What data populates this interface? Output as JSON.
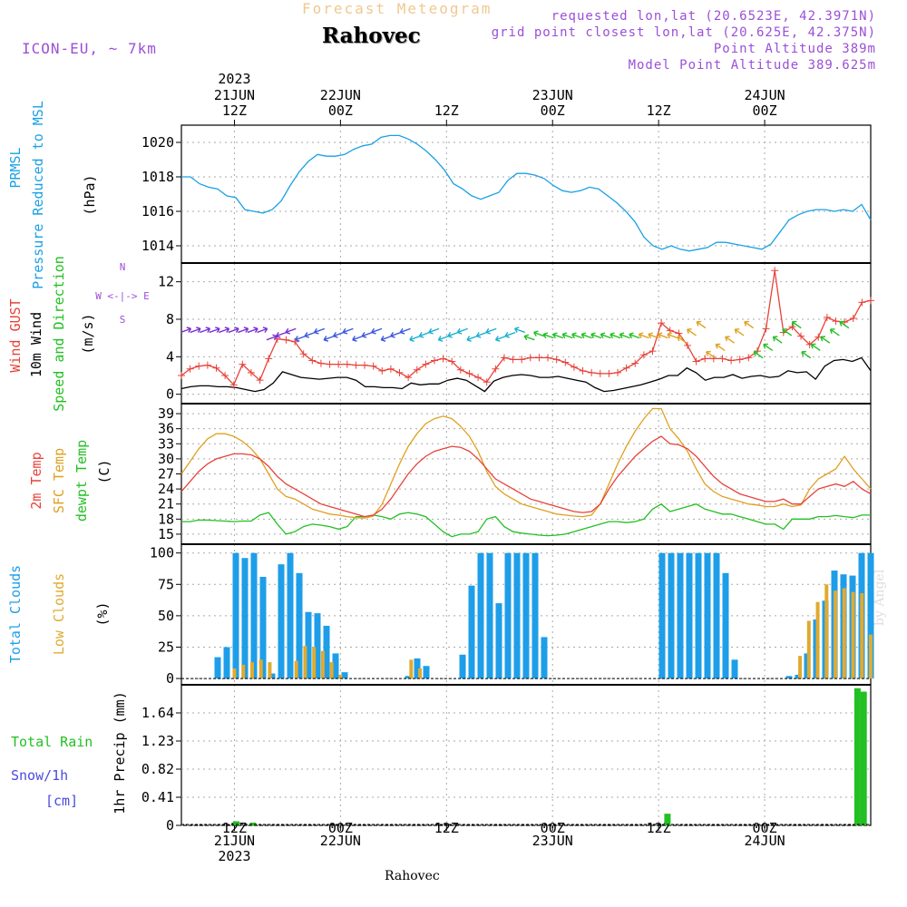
{
  "header": {
    "product_title": "Forecast Meteogram",
    "location_name": "Rahovec",
    "model_label": "ICON-EU, ~ 7km",
    "requested_coords": "requested lon,lat (20.6523E, 42.3971N)",
    "grid_coords": "grid point closest lon,lat (20.625E, 42.375N)",
    "point_altitude": "Point Altitude 389m",
    "model_altitude": "Model Point Altitude 389.625m"
  },
  "footer": {
    "location_name": "Rahovec",
    "credit": "by Angel"
  },
  "colors": {
    "pressure": "#1aa0e6",
    "gust": "#e8423a",
    "wind": "#000000",
    "temp": "#e8423a",
    "sfc_temp": "#e0a020",
    "dewpt": "#22c022",
    "total_clouds": "#1e9ee8",
    "low_clouds": "#e0aa30",
    "rain": "#22c022",
    "snow": "#4a4ae0",
    "purple": "#9b4fd6"
  },
  "chart_data": {
    "type": "meteogram",
    "time_axis": {
      "start_hour": 0,
      "end_hour": 78,
      "major_ticks": [
        {
          "hour": 6,
          "top": "12Z",
          "day": "21JUN",
          "year": "2023"
        },
        {
          "hour": 18,
          "top": "00Z",
          "day": "22JUN",
          "year": ""
        },
        {
          "hour": 30,
          "top": "12Z",
          "day": "",
          "year": ""
        },
        {
          "hour": 42,
          "top": "00Z",
          "day": "23JUN",
          "year": ""
        },
        {
          "hour": 54,
          "top": "12Z",
          "day": "",
          "year": ""
        },
        {
          "hour": 66,
          "top": "00Z",
          "day": "24JUN",
          "year": ""
        }
      ]
    },
    "panels": [
      {
        "id": "pressure",
        "labels": [
          "PRMSL",
          "Pressure Reduced to MSL"
        ],
        "unit": "(hPa)",
        "ylim": [
          1013,
          1021
        ],
        "ticks": [
          1014,
          1016,
          1018,
          1020
        ],
        "series": [
          {
            "name": "PRMSL",
            "values": [
              1018.0,
              1018.0,
              1017.6,
              1017.4,
              1017.3,
              1016.9,
              1016.8,
              1016.1,
              1016.0,
              1015.9,
              1016.1,
              1016.6,
              1017.5,
              1018.3,
              1018.9,
              1019.3,
              1019.2,
              1019.2,
              1019.3,
              1019.6,
              1019.8,
              1019.9,
              1020.3,
              1020.4,
              1020.4,
              1020.2,
              1019.9,
              1019.5,
              1019.0,
              1018.4,
              1017.6,
              1017.3,
              1016.9,
              1016.7,
              1016.9,
              1017.1,
              1017.8,
              1018.2,
              1018.2,
              1018.1,
              1017.9,
              1017.5,
              1017.2,
              1017.1,
              1017.2,
              1017.4,
              1017.3,
              1016.9,
              1016.5,
              1016.0,
              1015.4,
              1014.5,
              1014.0,
              1013.8,
              1014.0,
              1013.8,
              1013.7,
              1013.8,
              1013.9,
              1014.2,
              1014.2,
              1014.1,
              1014.0,
              1013.9,
              1013.8,
              1014.1,
              1014.8,
              1015.5,
              1015.8,
              1016.0,
              1016.1,
              1016.1,
              1016.0,
              1016.1,
              1016.0,
              1016.4,
              1015.5
            ]
          }
        ]
      },
      {
        "id": "wind",
        "labels": [
          "Wind GUST",
          "10m Wind",
          "Speed and Direction"
        ],
        "unit": "(m/s)",
        "compass": [
          "N",
          "W <-|-> E",
          "S"
        ],
        "ylim": [
          -1,
          14
        ],
        "ticks": [
          0,
          4,
          8,
          12
        ],
        "series": [
          {
            "name": "Wind GUST",
            "values": [
              2.0,
              2.7,
              3.0,
              3.1,
              2.8,
              2.0,
              1.0,
              3.2,
              2.3,
              1.5,
              3.8,
              5.9,
              5.8,
              5.6,
              4.3,
              3.6,
              3.3,
              3.2,
              3.2,
              3.2,
              3.1,
              3.1,
              3.0,
              2.5,
              2.7,
              2.3,
              1.8,
              2.6,
              3.2,
              3.6,
              3.8,
              3.5,
              2.6,
              2.2,
              1.8,
              1.3,
              2.7,
              3.9,
              3.7,
              3.7,
              3.9,
              3.9,
              3.9,
              3.7,
              3.4,
              2.9,
              2.5,
              2.3,
              2.2,
              2.2,
              2.3,
              2.8,
              3.3,
              4.2,
              4.6,
              7.6,
              6.8,
              6.5,
              5.2,
              3.5,
              3.8,
              3.8,
              3.8,
              3.6,
              3.7,
              3.9,
              4.6,
              7.0,
              13.2,
              6.6,
              7.2,
              6.2,
              5.3,
              6.1,
              8.2,
              7.8,
              7.7,
              8.1,
              9.8,
              10.0
            ]
          },
          {
            "name": "10m Wind",
            "values": [
              0.6,
              0.8,
              0.9,
              0.9,
              0.8,
              0.8,
              0.7,
              0.5,
              0.3,
              0.5,
              1.2,
              2.4,
              2.1,
              1.8,
              1.7,
              1.6,
              1.7,
              1.8,
              1.8,
              1.5,
              0.8,
              0.8,
              0.7,
              0.7,
              0.6,
              1.2,
              1.0,
              1.1,
              1.1,
              1.5,
              1.7,
              1.5,
              0.9,
              0.3,
              1.4,
              1.8,
              2.0,
              2.1,
              2.0,
              1.8,
              1.8,
              1.9,
              1.7,
              1.5,
              1.3,
              0.7,
              0.3,
              0.4,
              0.6,
              0.8,
              1.0,
              1.3,
              1.6,
              2.0,
              2.0,
              2.8,
              2.3,
              1.5,
              1.8,
              1.8,
              2.1,
              1.7,
              1.9,
              2.0,
              1.8,
              1.9,
              2.5,
              2.3,
              2.4,
              1.6,
              3.0,
              3.6,
              3.7,
              3.5,
              3.9,
              2.5
            ]
          }
        ]
      },
      {
        "id": "temperature",
        "labels": [
          "2m Temp",
          "SFC Temp",
          "dewpt Temp"
        ],
        "unit": "(C)",
        "ylim": [
          13,
          41
        ],
        "ticks": [
          15,
          18,
          21,
          24,
          27,
          30,
          33,
          36,
          39
        ],
        "series": [
          {
            "name": "2m Temp",
            "values": [
              23.5,
              25.5,
              27.5,
              29.0,
              30.0,
              30.5,
              31.0,
              31.0,
              30.8,
              30.0,
              28.5,
              26.5,
              25.0,
              24.0,
              23.0,
              22.0,
              21.0,
              20.5,
              20.0,
              19.5,
              19.0,
              18.5,
              18.8,
              20.0,
              22.0,
              24.5,
              27.0,
              29.0,
              30.5,
              31.5,
              32.0,
              32.5,
              32.3,
              31.5,
              30.0,
              28.0,
              26.0,
              25.0,
              24.0,
              23.0,
              22.0,
              21.5,
              21.0,
              20.5,
              20.0,
              19.5,
              19.3,
              19.5,
              21.0,
              24.0,
              26.5,
              28.5,
              30.5,
              32.0,
              33.5,
              34.5,
              33.0,
              32.8,
              32.0,
              30.5,
              28.5,
              26.5,
              25.0,
              24.0,
              23.0,
              22.5,
              22.0,
              21.5,
              21.5,
              22.0,
              21.0,
              21.0,
              22.5,
              24.0,
              24.5,
              25.0,
              24.5,
              25.5,
              24.0,
              23.0
            ]
          },
          {
            "name": "SFC Temp",
            "values": [
              27.0,
              29.5,
              32.0,
              34.0,
              35.0,
              35.0,
              34.5,
              33.5,
              32.0,
              30.0,
              27.0,
              24.0,
              22.5,
              22.0,
              21.0,
              20.0,
              19.5,
              19.0,
              18.8,
              18.5,
              18.3,
              18.2,
              18.6,
              21.0,
              25.0,
              29.0,
              32.5,
              35.0,
              37.0,
              38.0,
              38.5,
              38.0,
              36.5,
              34.5,
              31.5,
              27.5,
              24.5,
              23.0,
              22.0,
              21.0,
              20.5,
              20.0,
              19.5,
              19.0,
              18.8,
              18.6,
              18.5,
              18.8,
              21.0,
              25.0,
              29.0,
              32.5,
              35.5,
              38.0,
              40.0,
              40.0,
              36.0,
              34.0,
              31.5,
              28.0,
              25.0,
              23.5,
              22.5,
              22.0,
              21.5,
              21.0,
              20.8,
              20.5,
              20.5,
              21.0,
              20.5,
              20.8,
              24.0,
              26.0,
              27.0,
              28.0,
              30.5,
              28.0,
              26.0,
              24.0
            ]
          },
          {
            "name": "dewpt Temp",
            "values": [
              17.5,
              17.5,
              17.8,
              17.8,
              17.7,
              17.6,
              17.5,
              17.6,
              17.6,
              18.8,
              19.3,
              17.0,
              15.0,
              15.5,
              16.5,
              17.0,
              16.8,
              16.5,
              16.0,
              16.5,
              18.5,
              18.5,
              18.8,
              18.5,
              18.0,
              19.0,
              19.3,
              19.0,
              18.5,
              17.0,
              15.5,
              14.5,
              15.0,
              15.0,
              15.5,
              18.0,
              18.5,
              16.5,
              15.5,
              15.2,
              15.0,
              14.8,
              14.7,
              14.8,
              15.0,
              15.5,
              16.0,
              16.5,
              17.0,
              17.5,
              17.5,
              17.3,
              17.5,
              18.0,
              20.0,
              21.0,
              19.5,
              20.0,
              20.5,
              21.0,
              20.0,
              19.5,
              19.0,
              19.0,
              18.5,
              18.0,
              17.5,
              17.0,
              17.0,
              16.0,
              18.0,
              18.0,
              18.0,
              18.5,
              18.5,
              18.7,
              18.5,
              18.3,
              18.8,
              18.8
            ]
          }
        ]
      },
      {
        "id": "clouds",
        "labels": [
          "Total Clouds",
          "Low Clouds"
        ],
        "unit": "(%)",
        "ylim": [
          -5,
          107
        ],
        "ticks": [
          0,
          25,
          50,
          75,
          100
        ],
        "series": [
          {
            "name": "Total Clouds",
            "values": [
              0,
              0,
              0,
              0,
              17,
              25,
              100,
              96,
              100,
              81,
              4,
              91,
              100,
              84,
              53,
              52,
              42,
              20,
              5,
              0,
              0,
              0,
              0,
              0,
              0,
              2,
              16,
              10,
              0,
              0,
              0,
              19,
              74,
              100,
              100,
              60,
              100,
              100,
              100,
              100,
              33,
              0,
              0,
              0,
              0,
              0,
              0,
              0,
              0,
              0,
              0,
              0,
              0,
              100,
              100,
              100,
              100,
              100,
              100,
              100,
              84,
              15,
              0,
              0,
              0,
              0,
              0,
              2,
              3,
              20,
              47,
              62,
              86,
              83,
              82,
              100,
              100
            ]
          },
          {
            "name": "Low Clouds",
            "values": [
              0,
              0,
              0,
              0,
              0,
              0,
              8,
              11,
              13,
              15,
              13,
              0,
              0,
              14,
              26,
              25,
              22,
              13,
              3,
              0,
              0,
              0,
              0,
              0,
              0,
              0,
              15,
              8,
              0,
              0,
              0,
              0,
              0,
              0,
              0,
              0,
              0,
              0,
              0,
              0,
              0,
              0,
              0,
              0,
              0,
              0,
              0,
              0,
              0,
              0,
              0,
              0,
              0,
              0,
              0,
              0,
              0,
              0,
              0,
              0,
              0,
              0,
              0,
              0,
              0,
              0,
              0,
              0,
              0,
              0,
              18,
              46,
              61,
              75,
              70,
              72,
              69,
              68,
              35
            ]
          }
        ]
      },
      {
        "id": "precip",
        "labels": [
          "1hr Precip (mm)"
        ],
        "side_labels": [
          "Total  Rain",
          "Snow/1h",
          "[cm]"
        ],
        "ylim": [
          0,
          2.05
        ],
        "ticks": [
          0,
          0.41,
          0.82,
          1.23,
          1.64
        ],
        "tick_labels": [
          "0",
          "0.41",
          "0.82",
          "1.23",
          "1.64"
        ],
        "series": [
          {
            "name": "Total Rain",
            "points": [
              [
                6.2,
                0.06
              ],
              [
                8.1,
                0.04
              ],
              [
                55.0,
                0.17
              ],
              [
                76.5,
                2.0
              ],
              [
                77.2,
                1.95
              ]
            ]
          }
        ]
      }
    ]
  }
}
